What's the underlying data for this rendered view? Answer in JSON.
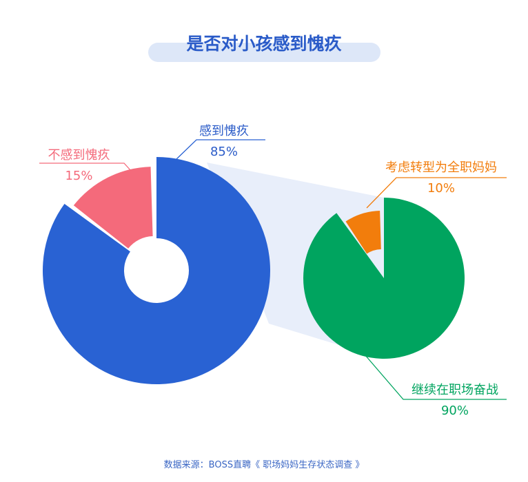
{
  "title": "是否对小孩感到愧疚",
  "source": "数据来源：BOSS直聘《 职场妈妈生存状态调查 》",
  "chart_data": {
    "type": "pie",
    "title": "是否对小孩感到愧疚",
    "main_pie": {
      "slices": [
        {
          "label": "感到愧疚",
          "value": 85,
          "value_label": "85%",
          "color": "#2962d3"
        },
        {
          "label": "不感到愧疚",
          "value": 15,
          "value_label": "15%",
          "color": "#f46a7b"
        }
      ]
    },
    "sub_pie": {
      "breakdown_of": "感到愧疚",
      "slices": [
        {
          "label": "继续在职场奋战",
          "value": 90,
          "value_label": "90%",
          "color": "#00a45f"
        },
        {
          "label": "考虑转型为全职妈妈",
          "value": 10,
          "value_label": "10%",
          "color": "#f27d0c"
        }
      ]
    },
    "connector_color": "#e8eefa"
  }
}
